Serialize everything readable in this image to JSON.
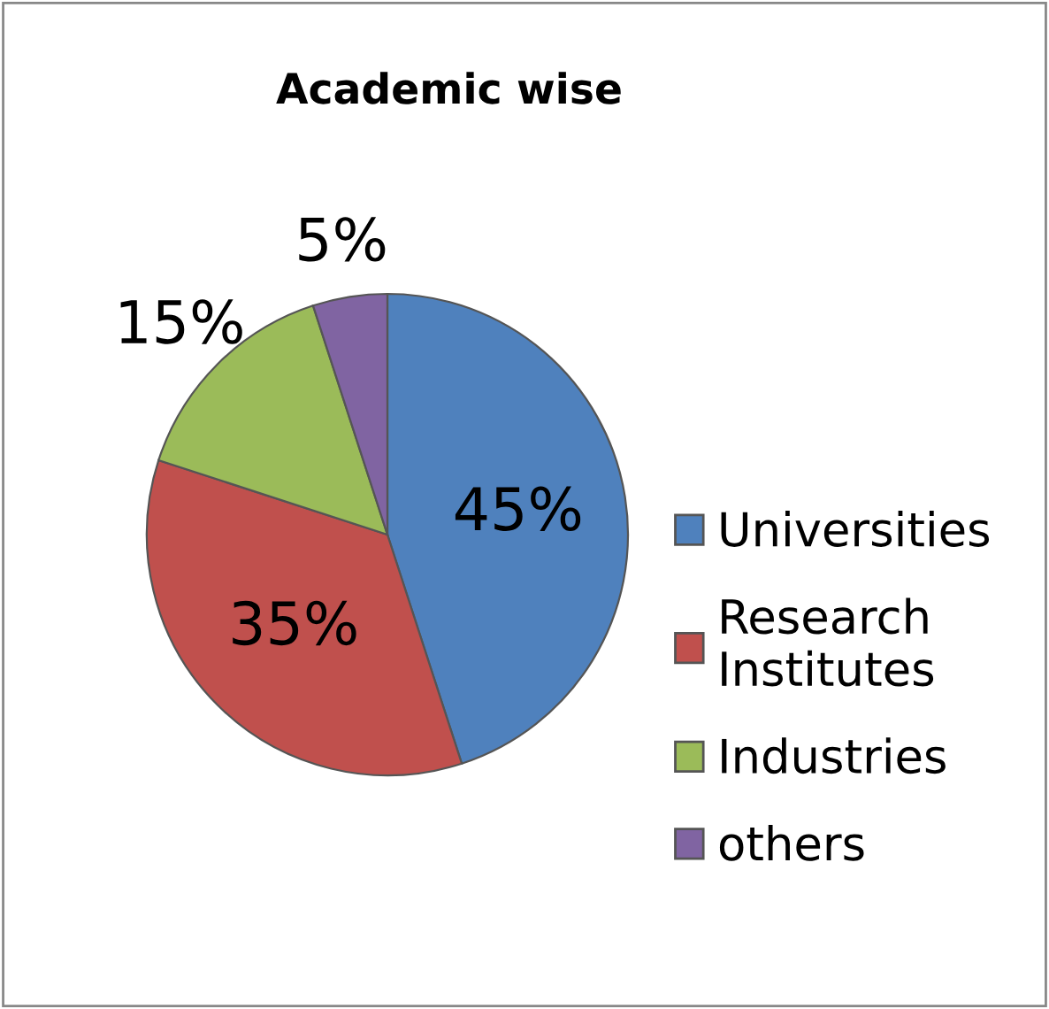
{
  "chart_data": {
    "type": "pie",
    "title": "Academic wise",
    "categories": [
      "Universities",
      "Research Institutes",
      "Industries",
      "others"
    ],
    "values": [
      45,
      35,
      15,
      5
    ],
    "colors": [
      "#4f81bd",
      "#c0504d",
      "#9bbb59",
      "#8064a2"
    ],
    "value_labels": [
      "45%",
      "35%",
      "15%",
      "5%"
    ],
    "legend": "right"
  }
}
